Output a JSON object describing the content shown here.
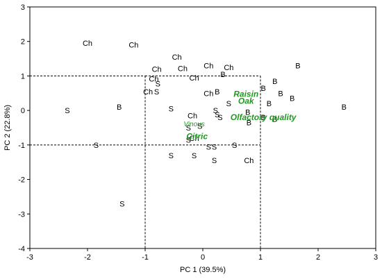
{
  "chart_data": {
    "type": "scatter",
    "xlabel": "PC 1 (39.5%)",
    "ylabel": "PC 2 (22.8%)",
    "xlim": [
      -3,
      3
    ],
    "ylim": [
      -4,
      3
    ],
    "xticks": [
      "-3",
      "-2",
      "-1",
      "0",
      "1",
      "2",
      "3"
    ],
    "yticks": [
      "-4",
      "-3",
      "-2",
      "-1",
      "0",
      "1",
      "2",
      "3"
    ],
    "guide_box": {
      "x": [
        -1,
        1
      ],
      "y": [
        -1,
        1
      ]
    },
    "points": [
      {
        "label": "Ch",
        "x": -2.0,
        "y": 1.95
      },
      {
        "label": "Ch",
        "x": -1.2,
        "y": 1.9
      },
      {
        "label": "Ch",
        "x": -0.45,
        "y": 1.55
      },
      {
        "label": "Ch",
        "x": 0.1,
        "y": 1.3
      },
      {
        "label": "Ch",
        "x": 0.45,
        "y": 1.25
      },
      {
        "label": "Ch",
        "x": -0.8,
        "y": 1.2
      },
      {
        "label": "Ch",
        "x": -0.35,
        "y": 1.22
      },
      {
        "label": "Ch",
        "x": -0.15,
        "y": 0.95
      },
      {
        "label": "Ch",
        "x": -0.85,
        "y": 0.92
      },
      {
        "label": "S",
        "x": -0.78,
        "y": 0.78
      },
      {
        "label": "Ch",
        "x": -0.95,
        "y": 0.55
      },
      {
        "label": "S",
        "x": -0.8,
        "y": 0.55
      },
      {
        "label": "Ch",
        "x": 0.1,
        "y": 0.5
      },
      {
        "label": "B",
        "x": 0.25,
        "y": 0.55
      },
      {
        "label": "B",
        "x": 0.35,
        "y": 1.05
      },
      {
        "label": "S",
        "x": 0.45,
        "y": 0.2
      },
      {
        "label": "S",
        "x": 0.22,
        "y": 0.0
      },
      {
        "label": "S",
        "x": 0.25,
        "y": -0.12
      },
      {
        "label": "S",
        "x": 0.3,
        "y": -0.2
      },
      {
        "label": "B",
        "x": 0.78,
        "y": -0.05
      },
      {
        "label": "B",
        "x": 0.8,
        "y": -0.35
      },
      {
        "label": "Ch",
        "x": -0.18,
        "y": -0.15
      },
      {
        "label": "S",
        "x": -0.05,
        "y": -0.45
      },
      {
        "label": "S",
        "x": -0.25,
        "y": -0.5
      },
      {
        "label": "Ch",
        "x": -0.15,
        "y": -0.8
      },
      {
        "label": "S",
        "x": -0.25,
        "y": -0.85
      },
      {
        "label": "S",
        "x": 0.2,
        "y": -1.05
      },
      {
        "label": "S",
        "x": 0.1,
        "y": -1.05
      },
      {
        "label": "S",
        "x": 0.55,
        "y": -1.0
      },
      {
        "label": "S",
        "x": -0.55,
        "y": -1.3
      },
      {
        "label": "S",
        "x": -0.15,
        "y": -1.3
      },
      {
        "label": "S",
        "x": 0.2,
        "y": -1.45
      },
      {
        "label": "Ch",
        "x": 0.8,
        "y": -1.45
      },
      {
        "label": "S",
        "x": -0.55,
        "y": 0.05
      },
      {
        "label": "B",
        "x": -1.45,
        "y": 0.1
      },
      {
        "label": "S",
        "x": -2.35,
        "y": 0.0
      },
      {
        "label": "S",
        "x": -1.85,
        "y": -1.0
      },
      {
        "label": "S",
        "x": -1.4,
        "y": -2.7
      },
      {
        "label": "B",
        "x": 1.65,
        "y": 1.3
      },
      {
        "label": "B",
        "x": 1.05,
        "y": 0.65
      },
      {
        "label": "B",
        "x": 1.25,
        "y": 0.85
      },
      {
        "label": "B",
        "x": 1.35,
        "y": 0.5
      },
      {
        "label": "B",
        "x": 1.15,
        "y": 0.2
      },
      {
        "label": "B",
        "x": 1.05,
        "y": -0.2
      },
      {
        "label": "B",
        "x": 1.25,
        "y": -0.25
      },
      {
        "label": "B",
        "x": 1.55,
        "y": 0.35
      },
      {
        "label": "B",
        "x": 2.45,
        "y": 0.1
      }
    ],
    "loadings": [
      {
        "label": "Raisin",
        "x": 0.75,
        "y": 0.48,
        "style": "bold"
      },
      {
        "label": "Oak",
        "x": 0.75,
        "y": 0.27,
        "style": "bold"
      },
      {
        "label": "Olfactory quality",
        "x": 1.05,
        "y": -0.2,
        "style": "bold"
      },
      {
        "label": "Vinous",
        "x": -0.15,
        "y": -0.38,
        "style": "small"
      },
      {
        "label": "Citric",
        "x": -0.1,
        "y": -0.75,
        "style": "bold"
      }
    ]
  }
}
